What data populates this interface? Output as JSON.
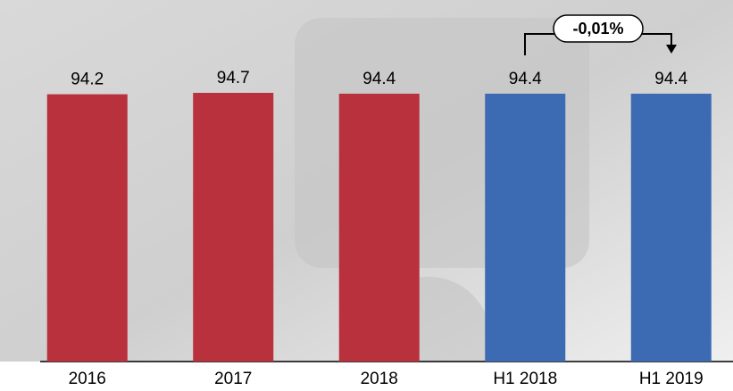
{
  "chart_data": {
    "type": "bar",
    "categories": [
      "2016",
      "2017",
      "2018",
      "H1 2018",
      "H1 2019"
    ],
    "values": [
      94.2,
      94.7,
      94.4,
      94.4,
      94.4
    ],
    "colors": [
      "#b8313c",
      "#b8313c",
      "#b8313c",
      "#3d6bb3",
      "#3d6bb3"
    ],
    "annotation": "-0,01%"
  }
}
